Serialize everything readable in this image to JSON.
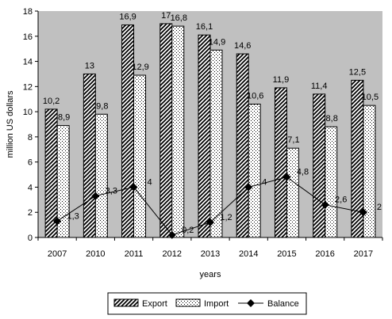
{
  "chart_data": {
    "type": "bar",
    "xlabel": "years",
    "ylabel": "million US dollars",
    "ylim": [
      0,
      18
    ],
    "yticks": [
      0,
      2,
      4,
      6,
      8,
      10,
      12,
      14,
      16,
      18
    ],
    "grid": false,
    "plot_background": "#c0c0c0",
    "legend_position": "bottom",
    "categories": [
      "2007",
      "2010",
      "2011",
      "2012",
      "2013",
      "2014",
      "2015",
      "2016",
      "2017"
    ],
    "series": [
      {
        "name": "Export",
        "kind": "bar",
        "pattern": "diagonal-hatch",
        "values": [
          10.2,
          13,
          16.9,
          17,
          16.1,
          14.6,
          11.9,
          11.4,
          12.5
        ],
        "labels": [
          "10,2",
          "13",
          "16,9",
          "17",
          "16,1",
          "14,6",
          "11,9",
          "11,4",
          "12,5"
        ]
      },
      {
        "name": "Import",
        "kind": "bar",
        "pattern": "dots",
        "values": [
          8.9,
          9.8,
          12.9,
          16.8,
          14.9,
          10.6,
          7.1,
          8.8,
          10.5
        ],
        "labels": [
          "8,9",
          "9,8",
          "12,9",
          "16,8",
          "14,9",
          "10,6",
          "7,1",
          "8,8",
          "10,5"
        ]
      },
      {
        "name": "Balance",
        "kind": "line",
        "marker": "diamond",
        "values": [
          1.3,
          3.3,
          4,
          0.2,
          1.2,
          4,
          4.8,
          2.6,
          2
        ],
        "labels": [
          "1,3",
          "3,3",
          "4",
          "0,2",
          "1,2",
          "4",
          "4,8",
          "2,6",
          "2"
        ]
      }
    ]
  }
}
